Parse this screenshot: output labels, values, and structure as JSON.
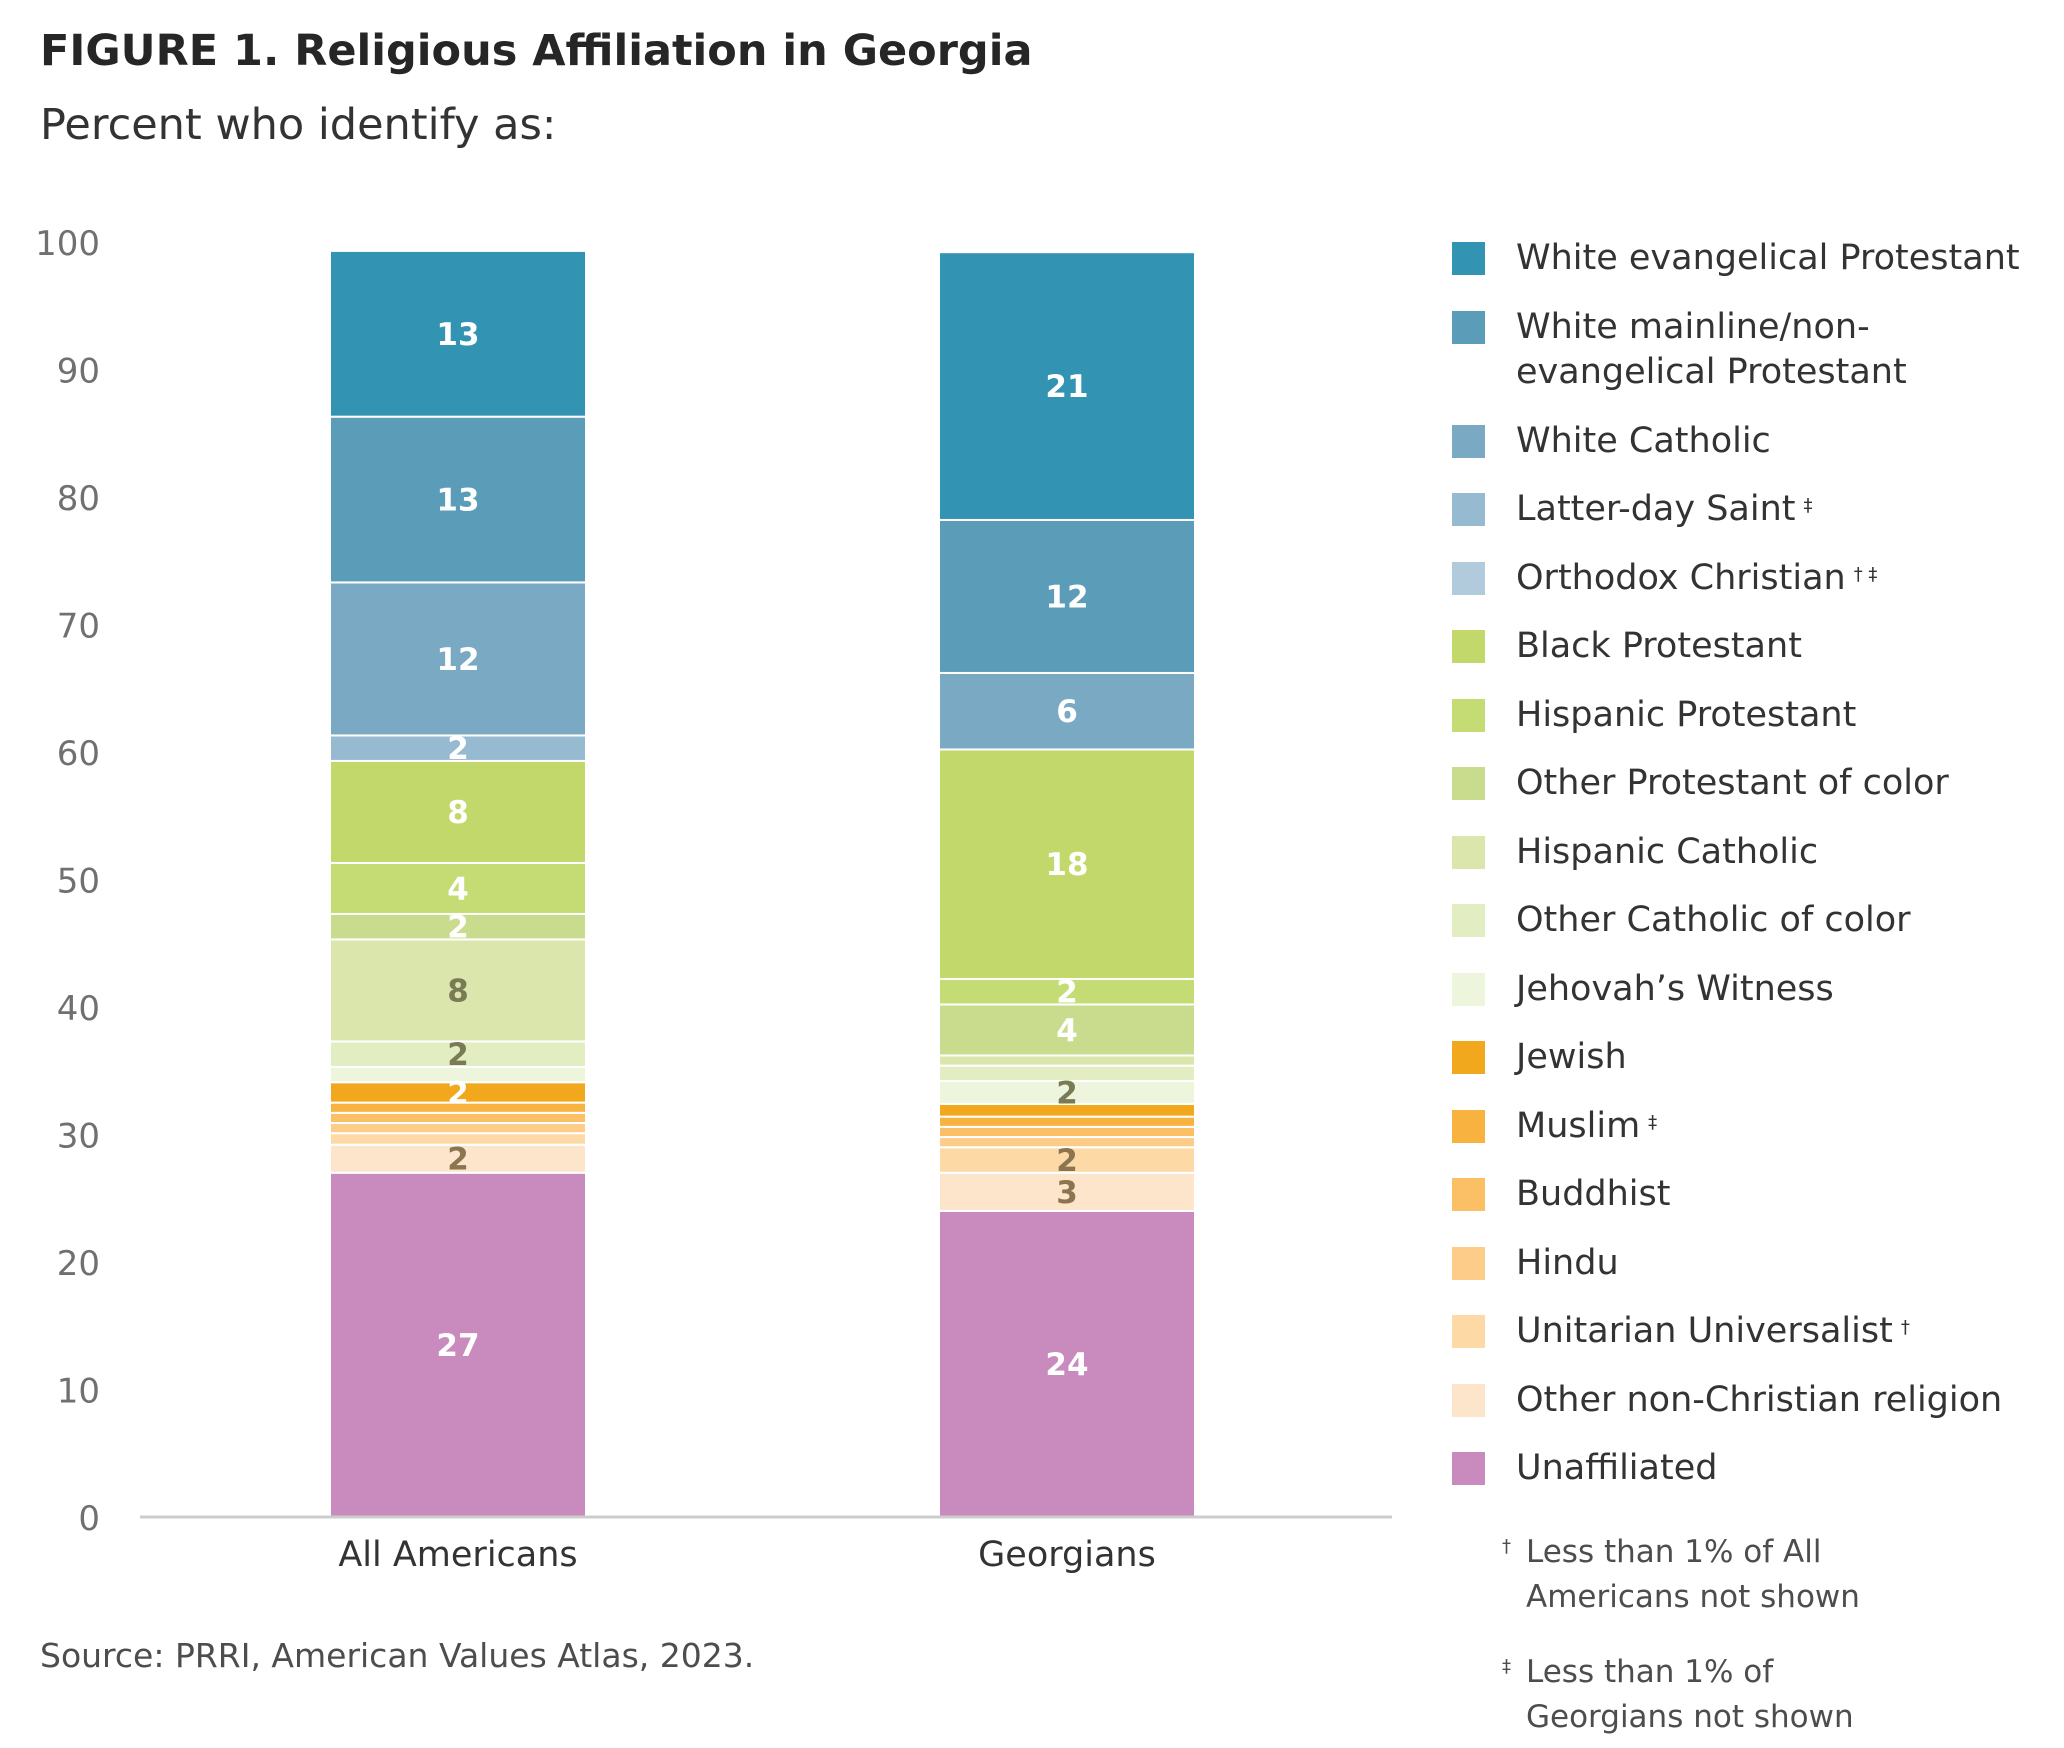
{
  "title": "FIGURE 1. Religious Affiliation in Georgia",
  "subtitle": "Percent who identify as:",
  "source": "Source: PRRI, American Values Atlas, 2023.",
  "footnotes": [
    {
      "mark": "†",
      "line1": "Less than 1% of All",
      "line2": "Americans not shown"
    },
    {
      "mark": "‡",
      "line1": "Less than 1% of",
      "line2": "Georgians not shown"
    }
  ],
  "chart_data": {
    "type": "bar",
    "stacked": true,
    "categories": [
      "All Americans",
      "Georgians"
    ],
    "ylim": [
      0,
      100
    ],
    "yticks": [
      "0",
      "10",
      "20",
      "30",
      "40",
      "50",
      "60",
      "70",
      "80",
      "90",
      "100"
    ],
    "grid": false,
    "legend_position": "right",
    "series": [
      {
        "name": "Unaffiliated",
        "color": "#c98abd",
        "values": [
          27,
          24
        ],
        "labels": [
          "27",
          "24"
        ],
        "label_color": "#ffffff"
      },
      {
        "name": "Other non-Christian religion",
        "color": "#fde5cc",
        "values": [
          2.2,
          3
        ],
        "labels": [
          "2",
          "3"
        ],
        "label_color": "#8a7550"
      },
      {
        "name": "Unitarian Universalist",
        "mark": "†",
        "color": "#fdd9a6",
        "values": [
          0.9,
          2
        ],
        "labels": [
          "",
          "2"
        ],
        "label_color": "#8a7550"
      },
      {
        "name": "Hindu",
        "color": "#fdcc88",
        "values": [
          0.8,
          0.8
        ],
        "labels": [
          "",
          ""
        ],
        "label_color": "#8a7550"
      },
      {
        "name": "Buddhist",
        "color": "#fbbf66",
        "values": [
          0.8,
          0.8
        ],
        "labels": [
          "",
          ""
        ],
        "label_color": "#8a7550"
      },
      {
        "name": "Muslim",
        "mark": "‡",
        "color": "#f8b240",
        "values": [
          0.8,
          0.8
        ],
        "labels": [
          "",
          ""
        ],
        "label_color": "#ffffff"
      },
      {
        "name": "Jewish",
        "color": "#f2a81d",
        "values": [
          1.6,
          1.0
        ],
        "labels": [
          "2",
          ""
        ],
        "label_color": "#ffffff"
      },
      {
        "name": "Jehovah’s Witness",
        "color": "#eef5dd",
        "values": [
          1.2,
          1.8
        ],
        "labels": [
          "",
          "2"
        ],
        "label_color": "#7a7a55"
      },
      {
        "name": "Other Catholic of color",
        "color": "#e2edc1",
        "values": [
          2,
          1.2
        ],
        "labels": [
          "2",
          ""
        ],
        "label_color": "#7a7a55"
      },
      {
        "name": "Hispanic Catholic",
        "color": "#dbe6ad",
        "values": [
          8,
          0.8
        ],
        "labels": [
          "8",
          ""
        ],
        "label_color": "#7a7a55"
      },
      {
        "name": "Other Protestant of color",
        "color": "#c9dc8e",
        "values": [
          2,
          4
        ],
        "labels": [
          "2",
          "4"
        ],
        "label_color": "#ffffff"
      },
      {
        "name": "Hispanic Protestant",
        "color": "#c4dc73",
        "values": [
          4,
          2
        ],
        "labels": [
          "4",
          "2"
        ],
        "label_color": "#ffffff"
      },
      {
        "name": "Black Protestant",
        "color": "#c2d86a",
        "values": [
          8,
          18
        ],
        "labels": [
          "8",
          "18"
        ],
        "label_color": "#ffffff"
      },
      {
        "name": "Orthodox Christian",
        "mark": "† ‡",
        "color": "#b2cbdc",
        "values": [
          0,
          0
        ],
        "labels": [
          "",
          ""
        ],
        "label_color": "#ffffff"
      },
      {
        "name": "Latter-day Saint",
        "mark": "‡",
        "color": "#96bad0",
        "values": [
          2,
          0
        ],
        "labels": [
          "2",
          ""
        ],
        "label_color": "#ffffff"
      },
      {
        "name": "White Catholic",
        "color": "#7aaac3",
        "values": [
          12,
          6
        ],
        "labels": [
          "12",
          "6"
        ],
        "label_color": "#ffffff"
      },
      {
        "name": "White mainline/non-evangelical Protestant",
        "legend_lines": [
          "White mainline/non-",
          "evangelical Protestant"
        ],
        "color": "#5b9db8",
        "values": [
          13,
          12
        ],
        "labels": [
          "13",
          "12"
        ],
        "label_color": "#ffffff"
      },
      {
        "name": "White evangelical Protestant",
        "color": "#3393b3",
        "values": [
          13,
          21
        ],
        "labels": [
          "13",
          "21"
        ],
        "label_color": "#ffffff"
      }
    ]
  }
}
